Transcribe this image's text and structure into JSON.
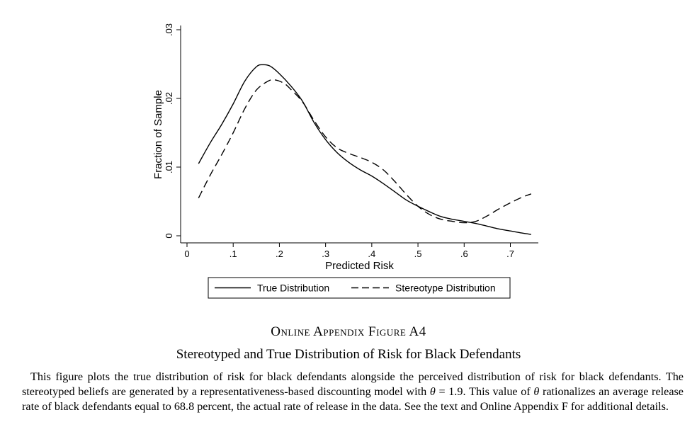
{
  "chart_data": {
    "type": "line",
    "xlabel": "Predicted Risk",
    "ylabel": "Fraction of Sample",
    "xlim": [
      0,
      0.75
    ],
    "ylim": [
      0,
      0.03
    ],
    "x_ticks": [
      {
        "value": 0,
        "label": "0"
      },
      {
        "value": 0.1,
        "label": ".1"
      },
      {
        "value": 0.2,
        "label": ".2"
      },
      {
        "value": 0.3,
        "label": ".3"
      },
      {
        "value": 0.4,
        "label": ".4"
      },
      {
        "value": 0.5,
        "label": ".5"
      },
      {
        "value": 0.6,
        "label": ".6"
      },
      {
        "value": 0.7,
        "label": ".7"
      }
    ],
    "y_ticks": [
      {
        "value": 0,
        "label": "0"
      },
      {
        "value": 0.01,
        "label": ".01"
      },
      {
        "value": 0.02,
        "label": ".02"
      },
      {
        "value": 0.03,
        "label": ".03"
      }
    ],
    "grid": false,
    "legend": "bottom",
    "series": [
      {
        "name": "True Distribution",
        "style": "solid",
        "x": [
          0.025,
          0.05,
          0.075,
          0.1,
          0.125,
          0.15,
          0.165,
          0.18,
          0.2,
          0.225,
          0.25,
          0.275,
          0.3,
          0.325,
          0.35,
          0.375,
          0.4,
          0.425,
          0.45,
          0.475,
          0.5,
          0.525,
          0.55,
          0.575,
          0.6,
          0.625,
          0.65,
          0.675,
          0.7,
          0.725,
          0.745
        ],
        "y": [
          0.0105,
          0.0135,
          0.0162,
          0.0192,
          0.0225,
          0.0246,
          0.0249,
          0.0247,
          0.0236,
          0.0218,
          0.0196,
          0.0165,
          0.014,
          0.0121,
          0.0107,
          0.0096,
          0.0087,
          0.0076,
          0.0064,
          0.0052,
          0.0043,
          0.0035,
          0.0028,
          0.0024,
          0.0021,
          0.0018,
          0.0014,
          0.001,
          0.0007,
          0.0004,
          0.0002
        ]
      },
      {
        "name": "Stereotype Distribution",
        "style": "dashed",
        "x": [
          0.025,
          0.05,
          0.075,
          0.1,
          0.125,
          0.15,
          0.175,
          0.19,
          0.21,
          0.225,
          0.25,
          0.275,
          0.3,
          0.325,
          0.35,
          0.375,
          0.4,
          0.425,
          0.45,
          0.475,
          0.5,
          0.525,
          0.55,
          0.575,
          0.6,
          0.625,
          0.65,
          0.675,
          0.7,
          0.725,
          0.745
        ],
        "y": [
          0.0055,
          0.0088,
          0.0118,
          0.015,
          0.0185,
          0.0212,
          0.0225,
          0.0227,
          0.0222,
          0.0213,
          0.0195,
          0.0168,
          0.0144,
          0.0128,
          0.012,
          0.0114,
          0.0107,
          0.0096,
          0.0079,
          0.006,
          0.0043,
          0.0031,
          0.0024,
          0.0021,
          0.0019,
          0.0021,
          0.0029,
          0.0039,
          0.0048,
          0.0056,
          0.0061
        ]
      }
    ]
  },
  "figure": {
    "label": "Online Appendix Figure A4",
    "title": "Stereotyped and True Distribution of Risk for Black Defendants",
    "caption_parts": {
      "p1": "This figure plots the true distribution of risk for black defendants alongside the perceived distribution of risk for black defendants. The stereotyped beliefs are generated by a representativeness-based discounting model with ",
      "symbol1": "θ",
      "p2": " = 1.9. This value of ",
      "symbol2": "θ",
      "p3": " rationalizes an average release rate of black defendants equal to 68.8 percent, the actual rate of release in the data. See the text and Online Appendix F for additional details."
    }
  }
}
